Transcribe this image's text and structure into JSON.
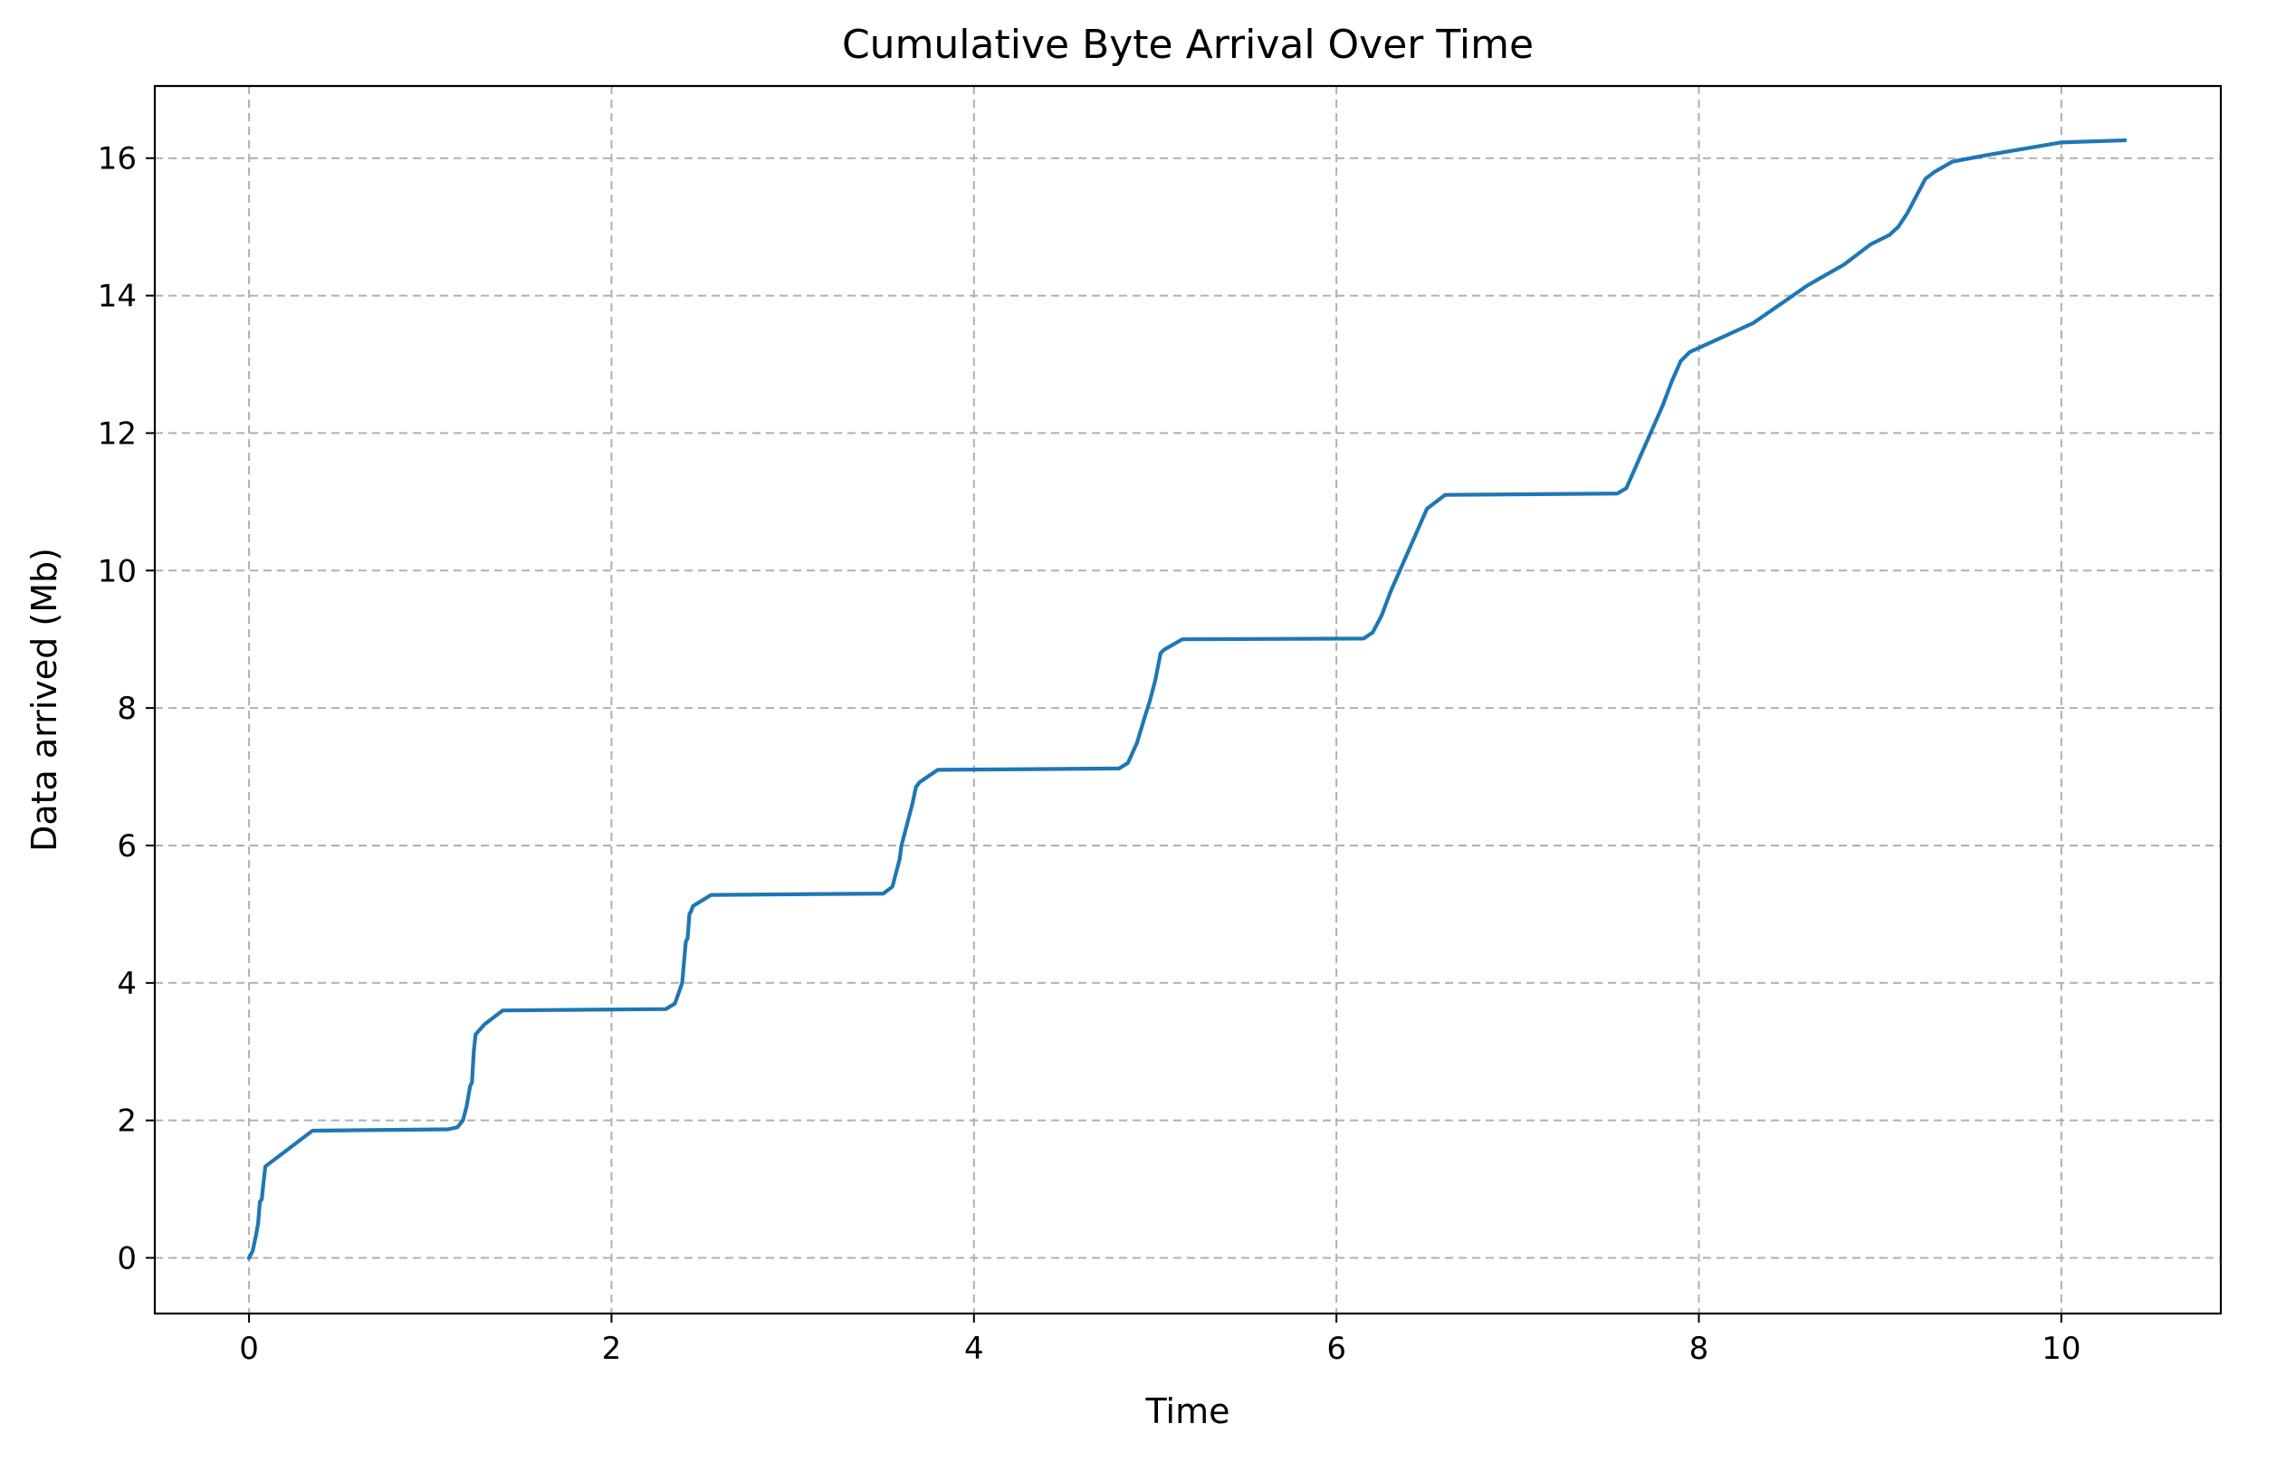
{
  "chart_data": {
    "type": "line",
    "title": "Cumulative Byte Arrival Over Time",
    "xlabel": "Time",
    "ylabel": "Data arrived (Mb)",
    "xlim": [
      -0.52,
      10.88
    ],
    "ylim": [
      -0.81,
      17.05
    ],
    "xticks": [
      0,
      2,
      4,
      6,
      8,
      10
    ],
    "yticks": [
      0,
      2,
      4,
      6,
      8,
      10,
      12,
      14,
      16
    ],
    "grid": true,
    "grid_style": "dashed",
    "legend": "none",
    "colors": {
      "line": "#1f77b4",
      "grid": "#b0b0b0",
      "axes": "#000000"
    },
    "series": [
      {
        "x": [
          0.0,
          0.02,
          0.04,
          0.05,
          0.06,
          0.07,
          0.08,
          0.09,
          0.1,
          0.35,
          1.1,
          1.15,
          1.18,
          1.2,
          1.22,
          1.23,
          1.24,
          1.25,
          1.3,
          1.4,
          2.3,
          2.35,
          2.37,
          2.39,
          2.4,
          2.41,
          2.42,
          2.43,
          2.44,
          2.45,
          2.55,
          3.5,
          3.55,
          3.57,
          3.59,
          3.6,
          3.62,
          3.64,
          3.66,
          3.68,
          3.7,
          3.8,
          4.8,
          4.85,
          4.9,
          4.94,
          4.97,
          5.0,
          5.03,
          5.05,
          5.15,
          6.15,
          6.2,
          6.25,
          6.3,
          6.35,
          6.4,
          6.45,
          6.5,
          6.6,
          7.55,
          7.6,
          7.65,
          7.7,
          7.75,
          7.8,
          7.85,
          7.9,
          7.95,
          8.3,
          8.6,
          8.8,
          8.95,
          9.05,
          9.1,
          9.15,
          9.2,
          9.25,
          9.3,
          9.4,
          9.6,
          10.0,
          10.35
        ],
        "y": [
          0.0,
          0.1,
          0.35,
          0.5,
          0.82,
          0.85,
          1.1,
          1.33,
          1.35,
          1.85,
          1.87,
          1.9,
          2.0,
          2.2,
          2.5,
          2.55,
          3.0,
          3.25,
          3.4,
          3.6,
          3.62,
          3.7,
          3.85,
          4.0,
          4.3,
          4.6,
          4.65,
          5.0,
          5.05,
          5.12,
          5.28,
          5.3,
          5.4,
          5.6,
          5.8,
          6.0,
          6.2,
          6.4,
          6.6,
          6.85,
          6.92,
          7.1,
          7.12,
          7.2,
          7.5,
          7.85,
          8.1,
          8.4,
          8.8,
          8.85,
          9.0,
          9.01,
          9.1,
          9.35,
          9.7,
          10.0,
          10.3,
          10.6,
          10.9,
          11.1,
          11.12,
          11.2,
          11.5,
          11.8,
          12.1,
          12.4,
          12.75,
          13.05,
          13.18,
          13.6,
          14.15,
          14.45,
          14.75,
          14.88,
          15.0,
          15.2,
          15.45,
          15.7,
          15.8,
          15.95,
          16.05,
          16.23,
          16.26
        ]
      }
    ]
  }
}
